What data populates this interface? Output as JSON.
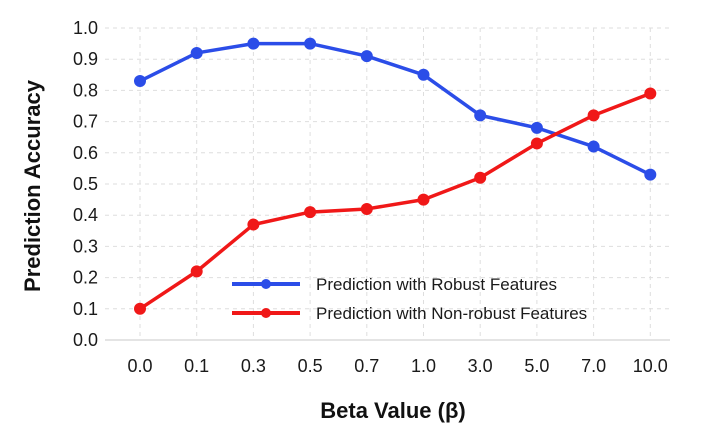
{
  "chart_data": {
    "type": "line",
    "categories": [
      "0.0",
      "0.1",
      "0.3",
      "0.5",
      "0.7",
      "1.0",
      "3.0",
      "5.0",
      "7.0",
      "10.0"
    ],
    "series": [
      {
        "name": "Prediction with Robust Features",
        "color": "#2b4de8",
        "values": [
          0.83,
          0.92,
          0.95,
          0.95,
          0.91,
          0.85,
          0.72,
          0.68,
          0.62,
          0.53
        ]
      },
      {
        "name": "Prediction with Non-robust Features",
        "color": "#f01818",
        "values": [
          0.1,
          0.22,
          0.37,
          0.41,
          0.42,
          0.45,
          0.52,
          0.63,
          0.72,
          0.79
        ]
      }
    ],
    "xlabel": "Beta Value (β)",
    "ylabel": "Prediction Accuracy",
    "ylim": [
      0.0,
      1.0
    ],
    "yticks": [
      "0.0",
      "0.1",
      "0.2",
      "0.3",
      "0.4",
      "0.5",
      "0.6",
      "0.7",
      "0.8",
      "0.9",
      "1.0"
    ],
    "grid": true,
    "legend_position": "lower-right"
  }
}
